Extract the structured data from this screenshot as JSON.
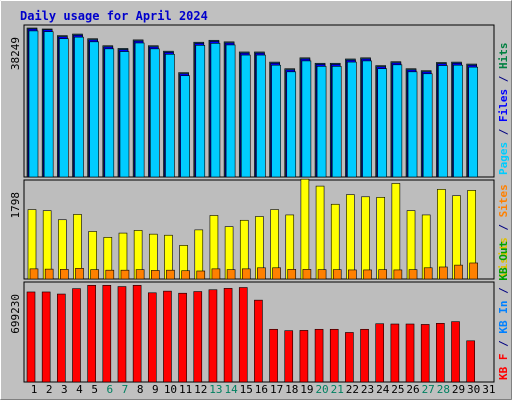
{
  "chart_data": {
    "type": "bar",
    "title": "Daily usage for April 2024",
    "categories": [
      "1",
      "2",
      "3",
      "4",
      "5",
      "6",
      "7",
      "8",
      "9",
      "10",
      "11",
      "12",
      "13",
      "14",
      "15",
      "16",
      "17",
      "18",
      "19",
      "20",
      "21",
      "22",
      "23",
      "24",
      "25",
      "26",
      "27",
      "28",
      "29",
      "30",
      "31"
    ],
    "weekend_days": [
      6,
      7,
      13,
      14,
      20,
      21,
      27,
      28
    ],
    "panels": [
      {
        "name": "top",
        "max_label": "38249",
        "ymax": 38249,
        "right_label": [
          {
            "text": "Pages",
            "color": "#00ccff"
          },
          {
            "text": " / ",
            "color": "#000080"
          },
          {
            "text": "Files",
            "color": "#0000ff"
          },
          {
            "text": " / ",
            "color": "#000080"
          },
          {
            "text": "Hits",
            "color": "#008040"
          }
        ],
        "series": [
          {
            "name": "Hits",
            "color": "#1f5e78",
            "values": [
              38249,
              38000,
              36300,
              36700,
              35500,
              33700,
              33000,
              35200,
              33700,
              32300,
              26800,
              34600,
              35100,
              34700,
              32100,
              32100,
              29500,
              27800,
              30600,
              29200,
              29200,
              30300,
              30600,
              28600,
              29600,
              27800,
              27300,
              29400,
              29500,
              29000,
              0
            ]
          },
          {
            "name": "Files",
            "color": "#0000ff",
            "values": [
              38000,
              37800,
              36000,
              36400,
              35200,
              33400,
              32700,
              34900,
              33400,
              32000,
              26500,
              34300,
              34800,
              34400,
              31800,
              31800,
              29200,
              27500,
              30300,
              28900,
              28900,
              30000,
              30300,
              28300,
              29300,
              27500,
              27000,
              29100,
              29200,
              28700,
              0
            ]
          },
          {
            "name": "Pages",
            "color": "#00ccff",
            "values": [
              37500,
              37300,
              35500,
              35900,
              34700,
              32900,
              32200,
              34400,
              32900,
              31500,
              26000,
              33800,
              34300,
              33900,
              31300,
              31300,
              28700,
              27000,
              29800,
              28400,
              28400,
              29500,
              29800,
              27800,
              28800,
              27000,
              26500,
              28600,
              28700,
              28200,
              0
            ]
          }
        ]
      },
      {
        "name": "middle",
        "max_label": "1798",
        "ymax": 1798,
        "right_label": [
          {
            "text": "Visits",
            "color": "#e0c000"
          },
          {
            "text": " / ",
            "color": "#000080"
          },
          {
            "text": "Sites",
            "color": "#ff8000"
          }
        ],
        "series": [
          {
            "name": "Visits",
            "color": "#ffff00",
            "values": [
              1300,
              1280,
              1110,
              1210,
              890,
              780,
              860,
              910,
              840,
              820,
              630,
              920,
              1190,
              980,
              1100,
              1170,
              1300,
              1200,
              1870,
              1740,
              1400,
              1580,
              1540,
              1530,
              1790,
              1280,
              1200,
              1680,
              1560,
              1660,
              0
            ]
          },
          {
            "name": "Sites",
            "color": "#ff8000",
            "values": [
              190,
              185,
              180,
              200,
              175,
              165,
              165,
              175,
              160,
              165,
              155,
              150,
              190,
              175,
              190,
              210,
              210,
              180,
              180,
              175,
              175,
              170,
              170,
              175,
              170,
              175,
              210,
              225,
              260,
              300,
              0
            ]
          }
        ]
      },
      {
        "name": "bottom",
        "max_label": "699230",
        "ymax": 699230,
        "right_label": [
          {
            "text": "KB F",
            "color": "#ff0000"
          },
          {
            "text": " / ",
            "color": "#000080"
          },
          {
            "text": "KB In",
            "color": "#0080ff"
          },
          {
            "text": " / ",
            "color": "#000080"
          },
          {
            "text": "KB Out",
            "color": "#00a000"
          }
        ],
        "series": [
          {
            "name": "KB F",
            "color": "#ff0000",
            "values": [
              649000,
              649000,
              634000,
              673000,
              697000,
              697000,
              688000,
              697000,
              643000,
              655000,
              640000,
              652000,
              665000,
              675000,
              681000,
              590000,
              380000,
              370000,
              372000,
              380000,
              380000,
              357000,
              380000,
              420000,
              418000,
              418000,
              415000,
              423000,
              435000,
              297000,
              0
            ]
          }
        ]
      }
    ]
  }
}
